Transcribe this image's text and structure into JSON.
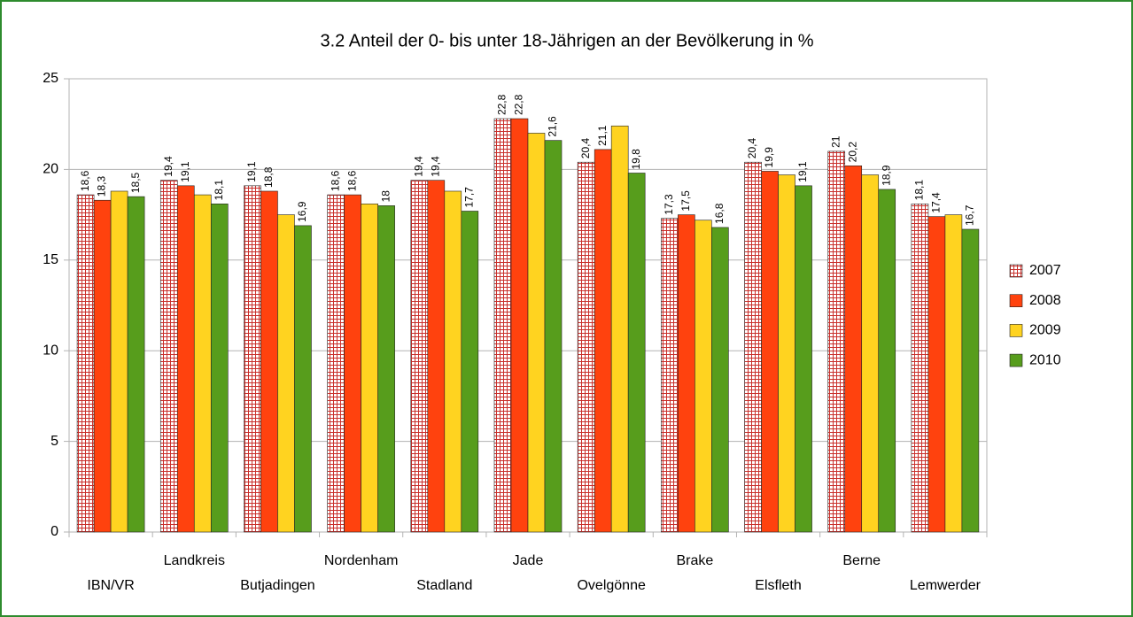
{
  "chart_data": {
    "type": "bar",
    "title": "3.2 Anteil der 0- bis unter 18-Jährigen an der Bevölkerung in %",
    "categories": [
      "IBN/VR",
      "Landkreis",
      "Butjadingen",
      "Nordenham",
      "Stadland",
      "Jade",
      "Ovelgönne",
      "Brake",
      "Elsfleth",
      "Berne",
      "Lemwerder"
    ],
    "series": [
      {
        "name": "2007",
        "color": "#c9302c",
        "pattern": "grid",
        "values": [
          18.6,
          19.4,
          19.1,
          18.6,
          19.4,
          22.8,
          20.4,
          17.3,
          20.4,
          21,
          18.1
        ],
        "value_labels": [
          "18,6",
          "19,4",
          "19,1",
          "18,6",
          "19,4",
          "22,8",
          "20,4",
          "17,3",
          "20,4",
          "21",
          "18,1"
        ]
      },
      {
        "name": "2008",
        "color": "#ff420e",
        "values": [
          18.3,
          19.1,
          18.8,
          18.6,
          19.4,
          22.8,
          21.1,
          17.5,
          19.9,
          20.2,
          17.4
        ],
        "value_labels": [
          "18,3",
          "19,1",
          "18,8",
          "18,6",
          "19,4",
          "22,8",
          "21,1",
          "17,5",
          "19,9",
          "20,2",
          "17,4"
        ]
      },
      {
        "name": "2009",
        "color": "#ffd320",
        "values": [
          18.8,
          18.6,
          17.5,
          18.1,
          18.8,
          22.0,
          22.4,
          17.2,
          19.7,
          19.7,
          17.5
        ]
      },
      {
        "name": "2010",
        "color": "#579d1c",
        "values": [
          18.5,
          18.1,
          16.9,
          18,
          17.7,
          21.6,
          19.8,
          16.8,
          19.1,
          18.9,
          16.7
        ],
        "value_labels": [
          "18,5",
          "18,1",
          "16,9",
          "18",
          "17,7",
          "21,6",
          "19,8",
          "16,8",
          "19,1",
          "18,9",
          "16,7"
        ]
      }
    ],
    "ylim": [
      0,
      25
    ],
    "yticks": [
      0,
      5,
      10,
      15,
      20,
      25
    ],
    "grid": true,
    "legend": "right"
  }
}
